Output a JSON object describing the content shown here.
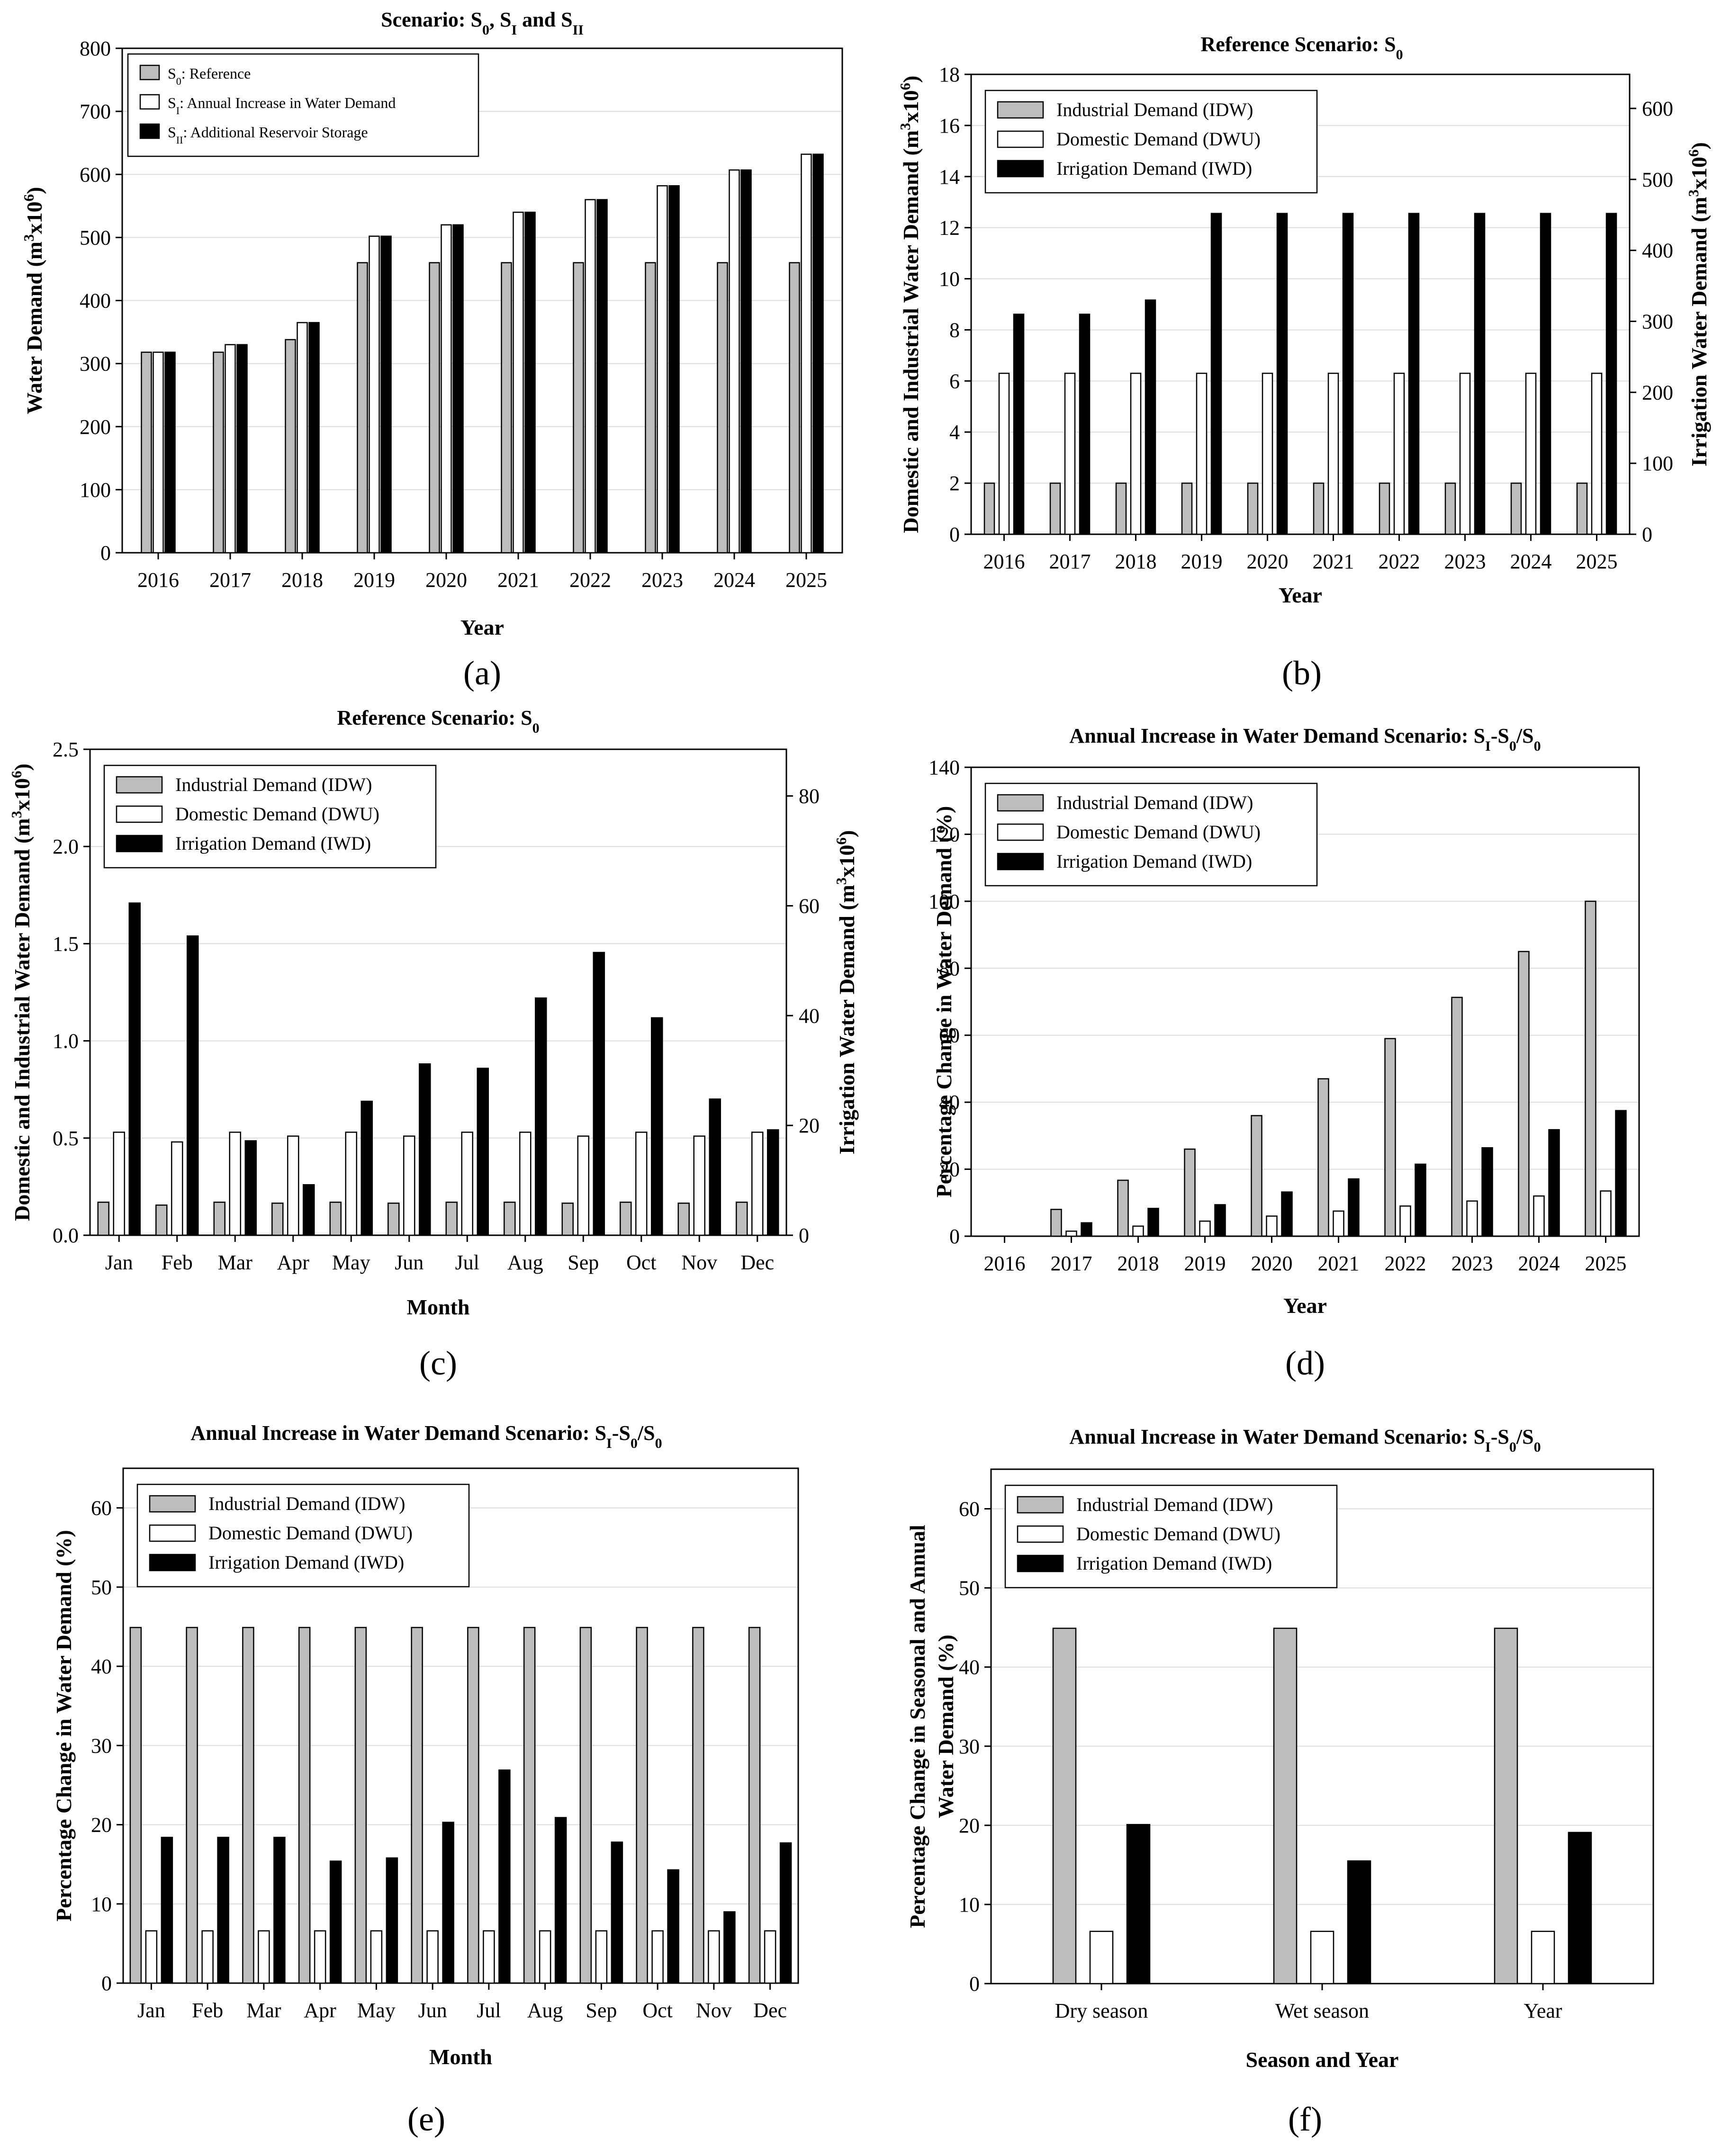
{
  "chart_data": [
    {
      "id": "a",
      "type": "bar",
      "panel_label": "(a)",
      "title": "Scenario: S0, SI and SII",
      "title_parts": [
        [
          "Scenario: S",
          ""
        ],
        [
          "0",
          "sub"
        ],
        [
          ", S",
          ""
        ],
        [
          "I",
          "sub"
        ],
        [
          " and S",
          ""
        ],
        [
          "II",
          "sub"
        ]
      ],
      "xlabel": "Year",
      "ylabel": "Water Demand (m3x106)",
      "ylabel_parts": [
        [
          "Water Demand (m",
          ""
        ],
        [
          "3",
          "sup"
        ],
        [
          "x10",
          ""
        ],
        [
          "6",
          "sup"
        ],
        [
          ")",
          ""
        ]
      ],
      "categories": [
        "2016",
        "2017",
        "2018",
        "2019",
        "2020",
        "2021",
        "2022",
        "2023",
        "2024",
        "2025"
      ],
      "ylim": [
        0,
        800
      ],
      "yticks": [
        0,
        100,
        200,
        300,
        400,
        500,
        600,
        700,
        800
      ],
      "legend_position": "top-left",
      "series": [
        {
          "name": "S0: Reference",
          "name_parts": [
            [
              "S",
              ""
            ],
            [
              "0",
              "sub"
            ],
            [
              ": Reference",
              ""
            ]
          ],
          "color": "#bdbdbd",
          "values": [
            318,
            318,
            338,
            460,
            460,
            460,
            460,
            460,
            460,
            460
          ]
        },
        {
          "name": "SI: Annual Increase in Water Demand",
          "name_parts": [
            [
              "S",
              ""
            ],
            [
              "I",
              "sub"
            ],
            [
              ": Annual Increase in Water Demand",
              ""
            ]
          ],
          "color": "#ffffff",
          "values": [
            318,
            330,
            365,
            502,
            520,
            540,
            560,
            582,
            607,
            632
          ]
        },
        {
          "name": "SII: Additional Reservoir Storage",
          "name_parts": [
            [
              "S",
              ""
            ],
            [
              "II",
              "sub"
            ],
            [
              ": Additional Reservoir Storage",
              ""
            ]
          ],
          "color": "#000000",
          "values": [
            318,
            330,
            365,
            502,
            520,
            540,
            560,
            582,
            607,
            632
          ]
        }
      ]
    },
    {
      "id": "b",
      "type": "bar",
      "panel_label": "(b)",
      "title": "Reference Scenario: S0",
      "title_parts": [
        [
          "Reference Scenario: S",
          ""
        ],
        [
          "0",
          "sub"
        ]
      ],
      "xlabel": "Year",
      "ylabel": "Domestic and Industrial Water Demand (m3x106)",
      "ylabel_parts": [
        [
          "Domestic and Industrial Water Demand (m",
          ""
        ],
        [
          "3",
          "sup"
        ],
        [
          "x10",
          ""
        ],
        [
          "6",
          "sup"
        ],
        [
          ")",
          ""
        ]
      ],
      "y2label": "Irrigation Water Demand (m3x106)",
      "y2label_parts": [
        [
          "Irrigation Water Demand (m",
          ""
        ],
        [
          "3",
          "sup"
        ],
        [
          "x10",
          ""
        ],
        [
          "6",
          "sup"
        ],
        [
          ")",
          ""
        ]
      ],
      "categories": [
        "2016",
        "2017",
        "2018",
        "2019",
        "2020",
        "2021",
        "2022",
        "2023",
        "2024",
        "2025"
      ],
      "ylim": [
        0,
        18
      ],
      "yticks": [
        0,
        2,
        4,
        6,
        8,
        10,
        12,
        14,
        16,
        18
      ],
      "y2lim": [
        0,
        648
      ],
      "y2ticks": [
        0,
        100,
        200,
        300,
        400,
        500,
        600
      ],
      "legend_position": "top-left",
      "series": [
        {
          "name": "Industrial Demand (IDW)",
          "color": "#bdbdbd",
          "axis": "left",
          "values": [
            2,
            2,
            2,
            2,
            2,
            2,
            2,
            2,
            2,
            2
          ]
        },
        {
          "name": "Domestic Demand (DWU)",
          "color": "#ffffff",
          "axis": "left",
          "values": [
            6.3,
            6.3,
            6.3,
            6.3,
            6.3,
            6.3,
            6.3,
            6.3,
            6.3,
            6.3
          ]
        },
        {
          "name": "Irrigation Demand (IWD)",
          "color": "#000000",
          "axis": "right",
          "values": [
            310,
            310,
            330,
            452,
            452,
            452,
            452,
            452,
            452,
            452
          ]
        }
      ]
    },
    {
      "id": "c",
      "type": "bar",
      "panel_label": "(c)",
      "title": "Reference Scenario: S0",
      "title_parts": [
        [
          "Reference Scenario: S",
          ""
        ],
        [
          "0",
          "sub"
        ]
      ],
      "xlabel": "Month",
      "ylabel": "Domestic and Industrial Water Demand (m3x106)",
      "ylabel_parts": [
        [
          "Domestic and Industrial Water Demand (m",
          ""
        ],
        [
          "3",
          "sup"
        ],
        [
          "x10",
          ""
        ],
        [
          "6",
          "sup"
        ],
        [
          ")",
          ""
        ]
      ],
      "y2label": "Irrigation Water Demand (m3x106)",
      "y2label_parts": [
        [
          "Irrigation Water Demand (m",
          ""
        ],
        [
          "3",
          "sup"
        ],
        [
          "x10",
          ""
        ],
        [
          "6",
          "sup"
        ],
        [
          ")",
          ""
        ]
      ],
      "categories": [
        "Jan",
        "Feb",
        "Mar",
        "Apr",
        "May",
        "Jun",
        "Jul",
        "Aug",
        "Sep",
        "Oct",
        "Nov",
        "Dec"
      ],
      "ylim": [
        0,
        2.5
      ],
      "yticks": [
        0.0,
        0.5,
        1.0,
        1.5,
        2.0,
        2.5
      ],
      "ytick_labels": [
        "0.0",
        "0.5",
        "1.0",
        "1.5",
        "2.0",
        "2.5"
      ],
      "y2lim": [
        0,
        88.5
      ],
      "y2ticks": [
        0,
        20,
        40,
        60,
        80
      ],
      "legend_position": "top-left",
      "series": [
        {
          "name": "Industrial Demand (IDW)",
          "color": "#bdbdbd",
          "axis": "left",
          "values": [
            0.17,
            0.155,
            0.17,
            0.165,
            0.17,
            0.165,
            0.17,
            0.17,
            0.165,
            0.17,
            0.165,
            0.17
          ]
        },
        {
          "name": "Domestic Demand (DWU)",
          "color": "#ffffff",
          "axis": "left",
          "values": [
            0.53,
            0.48,
            0.53,
            0.51,
            0.53,
            0.51,
            0.53,
            0.53,
            0.51,
            0.53,
            0.51,
            0.53
          ]
        },
        {
          "name": "Irrigation Demand (IWD)",
          "color": "#000000",
          "axis": "right",
          "values": [
            60.5,
            54.5,
            17.2,
            9.2,
            24.4,
            31.2,
            30.4,
            43.2,
            51.5,
            39.6,
            24.8,
            19.2
          ]
        }
      ]
    },
    {
      "id": "d",
      "type": "bar",
      "panel_label": "(d)",
      "title": "Annual Increase in Water Demand Scenario: SI-S0/S0",
      "title_parts": [
        [
          "Annual Increase in Water Demand Scenario: S",
          ""
        ],
        [
          "I",
          "sub"
        ],
        [
          "-S",
          ""
        ],
        [
          "0",
          "sub"
        ],
        [
          "/S",
          ""
        ],
        [
          "0",
          "sub"
        ]
      ],
      "xlabel": "Year",
      "ylabel": "Percentage Change in Water Demand (%)",
      "categories": [
        "2016",
        "2017",
        "2018",
        "2019",
        "2020",
        "2021",
        "2022",
        "2023",
        "2024",
        "2025"
      ],
      "ylim": [
        0,
        140
      ],
      "yticks": [
        0,
        20,
        40,
        60,
        80,
        100,
        120,
        140
      ],
      "legend_position": "top-left",
      "series": [
        {
          "name": "Industrial Demand (IDW)",
          "color": "#bdbdbd",
          "values": [
            0,
            8,
            16.7,
            26,
            36,
            47,
            59,
            71.3,
            85,
            100
          ]
        },
        {
          "name": "Domestic Demand (DWU)",
          "color": "#ffffff",
          "values": [
            0,
            1.5,
            3,
            4.5,
            6,
            7.5,
            9,
            10.5,
            12,
            13.5
          ]
        },
        {
          "name": "Irrigation Demand (IWD)",
          "color": "#000000",
          "values": [
            0,
            4,
            8.3,
            9.4,
            13.2,
            17.1,
            21.5,
            26.4,
            31.8,
            37.5
          ]
        }
      ]
    },
    {
      "id": "e",
      "type": "bar",
      "panel_label": "(e)",
      "title": "Annual Increase in Water Demand Scenario: SI-S0/S0",
      "title_parts": [
        [
          "Annual Increase in Water Demand Scenario: S",
          ""
        ],
        [
          "I",
          "sub"
        ],
        [
          "-S",
          ""
        ],
        [
          "0",
          "sub"
        ],
        [
          "/S",
          ""
        ],
        [
          "0",
          "sub"
        ]
      ],
      "xlabel": "Month",
      "ylabel": "Percentage Change in Water Demand (%)",
      "categories": [
        "Jan",
        "Feb",
        "Mar",
        "Apr",
        "May",
        "Jun",
        "Jul",
        "Aug",
        "Sep",
        "Oct",
        "Nov",
        "Dec"
      ],
      "ylim": [
        0,
        65
      ],
      "yticks": [
        0,
        10,
        20,
        30,
        40,
        50,
        60
      ],
      "legend_position": "top-left",
      "series": [
        {
          "name": "Industrial Demand (IDW)",
          "color": "#bdbdbd",
          "values": [
            44.9,
            44.9,
            44.9,
            44.9,
            44.9,
            44.9,
            44.9,
            44.9,
            44.9,
            44.9,
            44.9,
            44.9
          ]
        },
        {
          "name": "Domestic Demand (DWU)",
          "color": "#ffffff",
          "values": [
            6.6,
            6.6,
            6.6,
            6.6,
            6.6,
            6.6,
            6.6,
            6.6,
            6.6,
            6.6,
            6.6,
            6.6
          ]
        },
        {
          "name": "Irrigation Demand (IWD)",
          "color": "#000000",
          "values": [
            18.4,
            18.4,
            18.4,
            15.4,
            15.8,
            20.3,
            26.9,
            20.9,
            17.8,
            14.3,
            9.0,
            17.7
          ]
        }
      ]
    },
    {
      "id": "f",
      "type": "bar",
      "panel_label": "(f)",
      "title": "Annual Increase in Water Demand Scenario: SI-S0/S0",
      "title_parts": [
        [
          "Annual Increase in Water Demand Scenario: S",
          ""
        ],
        [
          "I",
          "sub"
        ],
        [
          "-S",
          ""
        ],
        [
          "0",
          "sub"
        ],
        [
          "/S",
          ""
        ],
        [
          "0",
          "sub"
        ]
      ],
      "xlabel": "Season and Year",
      "ylabel": "Percentage Change in Seasonal and Annual Water Demand (%)",
      "ylabel_line1": "Percentage Change in Seasonal and Annual",
      "ylabel_line2": "Water Demand (%)",
      "categories": [
        "Dry season",
        "Wet season",
        "Year"
      ],
      "ylim": [
        0,
        65
      ],
      "yticks": [
        0,
        10,
        20,
        30,
        40,
        50,
        60
      ],
      "legend_position": "top-left",
      "series": [
        {
          "name": "Industrial Demand (IDW)",
          "color": "#bdbdbd",
          "values": [
            44.9,
            44.9,
            44.9
          ]
        },
        {
          "name": "Domestic Demand (DWU)",
          "color": "#ffffff",
          "values": [
            6.6,
            6.6,
            6.6
          ]
        },
        {
          "name": "Irrigation Demand (IWD)",
          "color": "#000000",
          "values": [
            20.1,
            15.5,
            19.1
          ]
        }
      ]
    }
  ]
}
